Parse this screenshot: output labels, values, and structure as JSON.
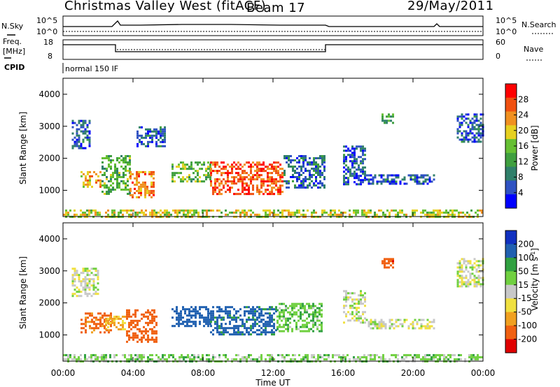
{
  "header": {
    "site": "Christmas Valley West (fitACF)",
    "beam": "Beam 17",
    "date": "29/May/2011"
  },
  "strip": {
    "nsky_label": "N.Sky",
    "nsky_ticks": [
      "10^5",
      "10^0"
    ],
    "nsearch_label": "N.Search",
    "nsearch_ticks": [
      "10^5",
      "10^0"
    ],
    "freq_label_1": "Freq.",
    "freq_label_2": "[MHz]",
    "freq_ticks": [
      "18",
      "8"
    ],
    "nave_label": "Nave",
    "nave_ticks": [
      "60",
      "0"
    ],
    "cpid_label": "CPID",
    "cpid_value": "normal 150 IF"
  },
  "colors": {
    "power_scale": [
      "#0000ff",
      "#2f52c2",
      "#2f7f6a",
      "#3f9f3f",
      "#66c033",
      "#e6d020",
      "#f09020",
      "#f05010",
      "#ff0000"
    ],
    "velocity_scale": [
      "#1030c0",
      "#2060b0",
      "#30a040",
      "#70d040",
      "#c8c8c8",
      "#f0e040",
      "#f0a020",
      "#f06010",
      "#e00000"
    ],
    "ground_scatter": "#c8c8c8"
  },
  "chart_data": [
    {
      "type": "heatmap",
      "panel": "power",
      "xlabel": "",
      "ylabel": "Slant Range [km]",
      "x_ticks": [
        "00:00",
        "04:00",
        "08:00",
        "12:00",
        "16:00",
        "20:00",
        "00:00"
      ],
      "y_ticks": [
        "1000",
        "2000",
        "3000",
        "4000"
      ],
      "colorbar_label": "Power [dB]",
      "colorbar_ticks": [
        "4",
        "8",
        "12",
        "16",
        "20",
        "24",
        "28"
      ],
      "regions": [
        {
          "t": [
            0.5,
            1.5
          ],
          "r": [
            2300,
            3200
          ],
          "v": 6
        },
        {
          "t": [
            1.0,
            2.2
          ],
          "r": [
            1100,
            1600
          ],
          "v": 22
        },
        {
          "t": [
            2.2,
            3.8
          ],
          "r": [
            900,
            2100
          ],
          "v": 14
        },
        {
          "t": [
            3.8,
            5.2
          ],
          "r": [
            800,
            1600
          ],
          "v": 24
        },
        {
          "t": [
            4.2,
            5.8
          ],
          "r": [
            2400,
            3000
          ],
          "v": 6
        },
        {
          "t": [
            6.2,
            8.4
          ],
          "r": [
            1300,
            1900
          ],
          "v": 15
        },
        {
          "t": [
            8.4,
            12.6
          ],
          "r": [
            900,
            1900
          ],
          "v": 27
        },
        {
          "t": [
            12.6,
            15.0
          ],
          "r": [
            1100,
            2100
          ],
          "v": 7
        },
        {
          "t": [
            16.0,
            17.3
          ],
          "r": [
            1200,
            2400
          ],
          "v": 6
        },
        {
          "t": [
            17.3,
            21.2
          ],
          "r": [
            1200,
            1500
          ],
          "v": 6
        },
        {
          "t": [
            18.2,
            18.9
          ],
          "r": [
            3100,
            3400
          ],
          "v": 12
        },
        {
          "t": [
            22.5,
            24.0
          ],
          "r": [
            2500,
            3400
          ],
          "v": 6
        },
        {
          "t": [
            0.0,
            24.0
          ],
          "r": [
            180,
            400
          ],
          "v": 18
        }
      ]
    },
    {
      "type": "heatmap",
      "panel": "velocity",
      "xlabel": "Time UT",
      "ylabel": "Slant Range [km]",
      "x_ticks": [
        "00:00",
        "04:00",
        "08:00",
        "12:00",
        "16:00",
        "20:00",
        "00:00"
      ],
      "y_ticks": [
        "1000",
        "2000",
        "3000",
        "4000"
      ],
      "colorbar_label": "Velocity [m s^-1]",
      "colorbar_ticks": [
        "200",
        "100",
        "50",
        "15",
        "-15",
        "-50",
        "-100",
        "-200"
      ],
      "regions": [
        {
          "t": [
            0.5,
            2.0
          ],
          "r": [
            2200,
            3100
          ],
          "v": 0
        },
        {
          "t": [
            1.0,
            2.8
          ],
          "r": [
            1100,
            1700
          ],
          "v": -120
        },
        {
          "t": [
            2.4,
            3.6
          ],
          "r": [
            1200,
            1600
          ],
          "v": -60
        },
        {
          "t": [
            3.6,
            5.3
          ],
          "r": [
            800,
            1800
          ],
          "v": -160
        },
        {
          "t": [
            6.2,
            8.4
          ],
          "r": [
            1300,
            1900
          ],
          "v": 160
        },
        {
          "t": [
            8.4,
            12.2
          ],
          "r": [
            1000,
            1900
          ],
          "v": 120
        },
        {
          "t": [
            12.2,
            14.8
          ],
          "r": [
            1100,
            2000
          ],
          "v": 40
        },
        {
          "t": [
            16.0,
            17.3
          ],
          "r": [
            1400,
            2400
          ],
          "v": 0
        },
        {
          "t": [
            17.3,
            21.2
          ],
          "r": [
            1200,
            1500
          ],
          "v": 0
        },
        {
          "t": [
            18.2,
            18.9
          ],
          "r": [
            3100,
            3400
          ],
          "v": -180
        },
        {
          "t": [
            22.5,
            24.0
          ],
          "r": [
            2500,
            3400
          ],
          "v": 0
        },
        {
          "t": [
            0.0,
            24.0
          ],
          "r": [
            180,
            400
          ],
          "v": 30
        }
      ]
    }
  ]
}
